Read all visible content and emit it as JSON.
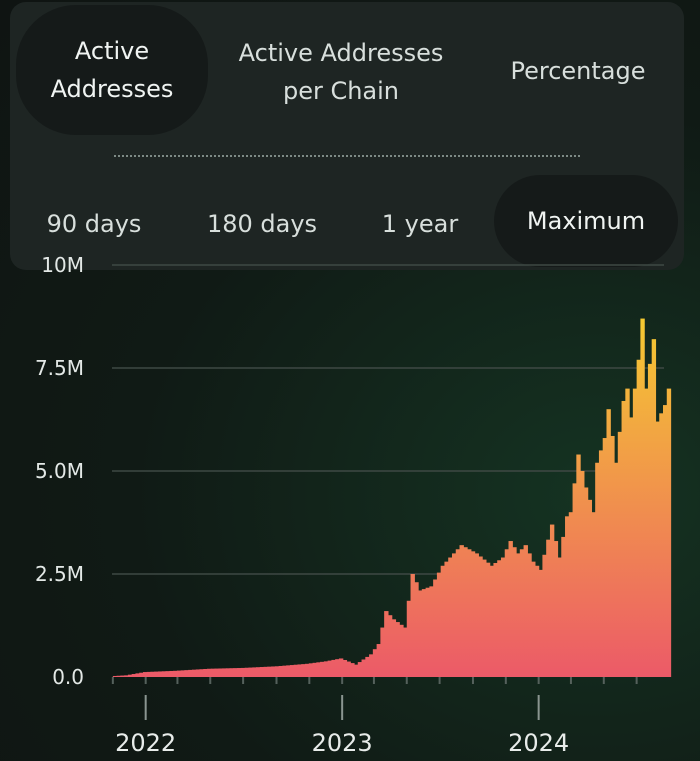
{
  "tabs": {
    "metric": [
      {
        "label": "Active Addresses",
        "active": true
      },
      {
        "label": "Active Addresses per Chain",
        "active": false
      },
      {
        "label": "Percentage",
        "active": false
      }
    ],
    "range": [
      {
        "label": "90 days",
        "active": false
      },
      {
        "label": "180 days",
        "active": false
      },
      {
        "label": "1 year",
        "active": false
      },
      {
        "label": "Maximum",
        "active": true
      }
    ]
  },
  "chart_data": {
    "type": "bar",
    "y_ticks": [
      "0.0",
      "2.5M",
      "5.0M",
      "7.5M",
      "10M"
    ],
    "y_tick_values": [
      0,
      2500000,
      5000000,
      7500000,
      10000000
    ],
    "ylim": [
      0,
      10000000
    ],
    "x_ticks": [
      {
        "label": "2022",
        "value": "2022-01-01"
      },
      {
        "label": "2023",
        "value": "2023-01-01"
      },
      {
        "label": "2024",
        "value": "2024-01-01"
      }
    ],
    "x_range": [
      "2021-09-01",
      "2024-09-01"
    ],
    "grid": true,
    "colors": {
      "bottom": "#ec5a68",
      "top": "#f5c931",
      "grid": "#3e4944"
    },
    "series": [
      {
        "dates": [
          "2021-09-27",
          "2021-11-22",
          "2021-12-27",
          "2022-02-21",
          "2022-04-25",
          "2022-06-27",
          "2022-08-29",
          "2022-10-24",
          "2022-11-28",
          "2022-12-26",
          "2023-01-23",
          "2023-02-20",
          "2023-03-06",
          "2023-03-20",
          "2023-04-03",
          "2023-04-24",
          "2023-05-08",
          "2023-05-22",
          "2023-06-12",
          "2023-07-03",
          "2023-08-07",
          "2023-09-04",
          "2023-10-02",
          "2023-10-23",
          "2023-11-06",
          "2023-11-20",
          "2023-12-04",
          "2023-12-18",
          "2024-01-01",
          "2024-01-22",
          "2024-02-05",
          "2024-02-19",
          "2024-02-26",
          "2024-03-11",
          "2024-03-25",
          "2024-04-08",
          "2024-04-15",
          "2024-04-29",
          "2024-05-06",
          "2024-05-20",
          "2024-06-03",
          "2024-06-10",
          "2024-06-17",
          "2024-07-01",
          "2024-07-08",
          "2024-07-15",
          "2024-07-29",
          "2024-08-05",
          "2024-08-19",
          "2024-08-26"
        ],
        "values": [
          0,
          40000,
          120000,
          150000,
          200000,
          220000,
          260000,
          320000,
          380000,
          450000,
          300000,
          550000,
          800000,
          1600000,
          1400000,
          1200000,
          2500000,
          2100000,
          2200000,
          2700000,
          3200000,
          3000000,
          2700000,
          2900000,
          3300000,
          3000000,
          3200000,
          2800000,
          2600000,
          3700000,
          2900000,
          3900000,
          4000000,
          5400000,
          4600000,
          4000000,
          5200000,
          5800000,
          6500000,
          5200000,
          6700000,
          7000000,
          6300000,
          7700000,
          8700000,
          7000000,
          8200000,
          6200000,
          6600000,
          7000000
        ]
      }
    ]
  }
}
